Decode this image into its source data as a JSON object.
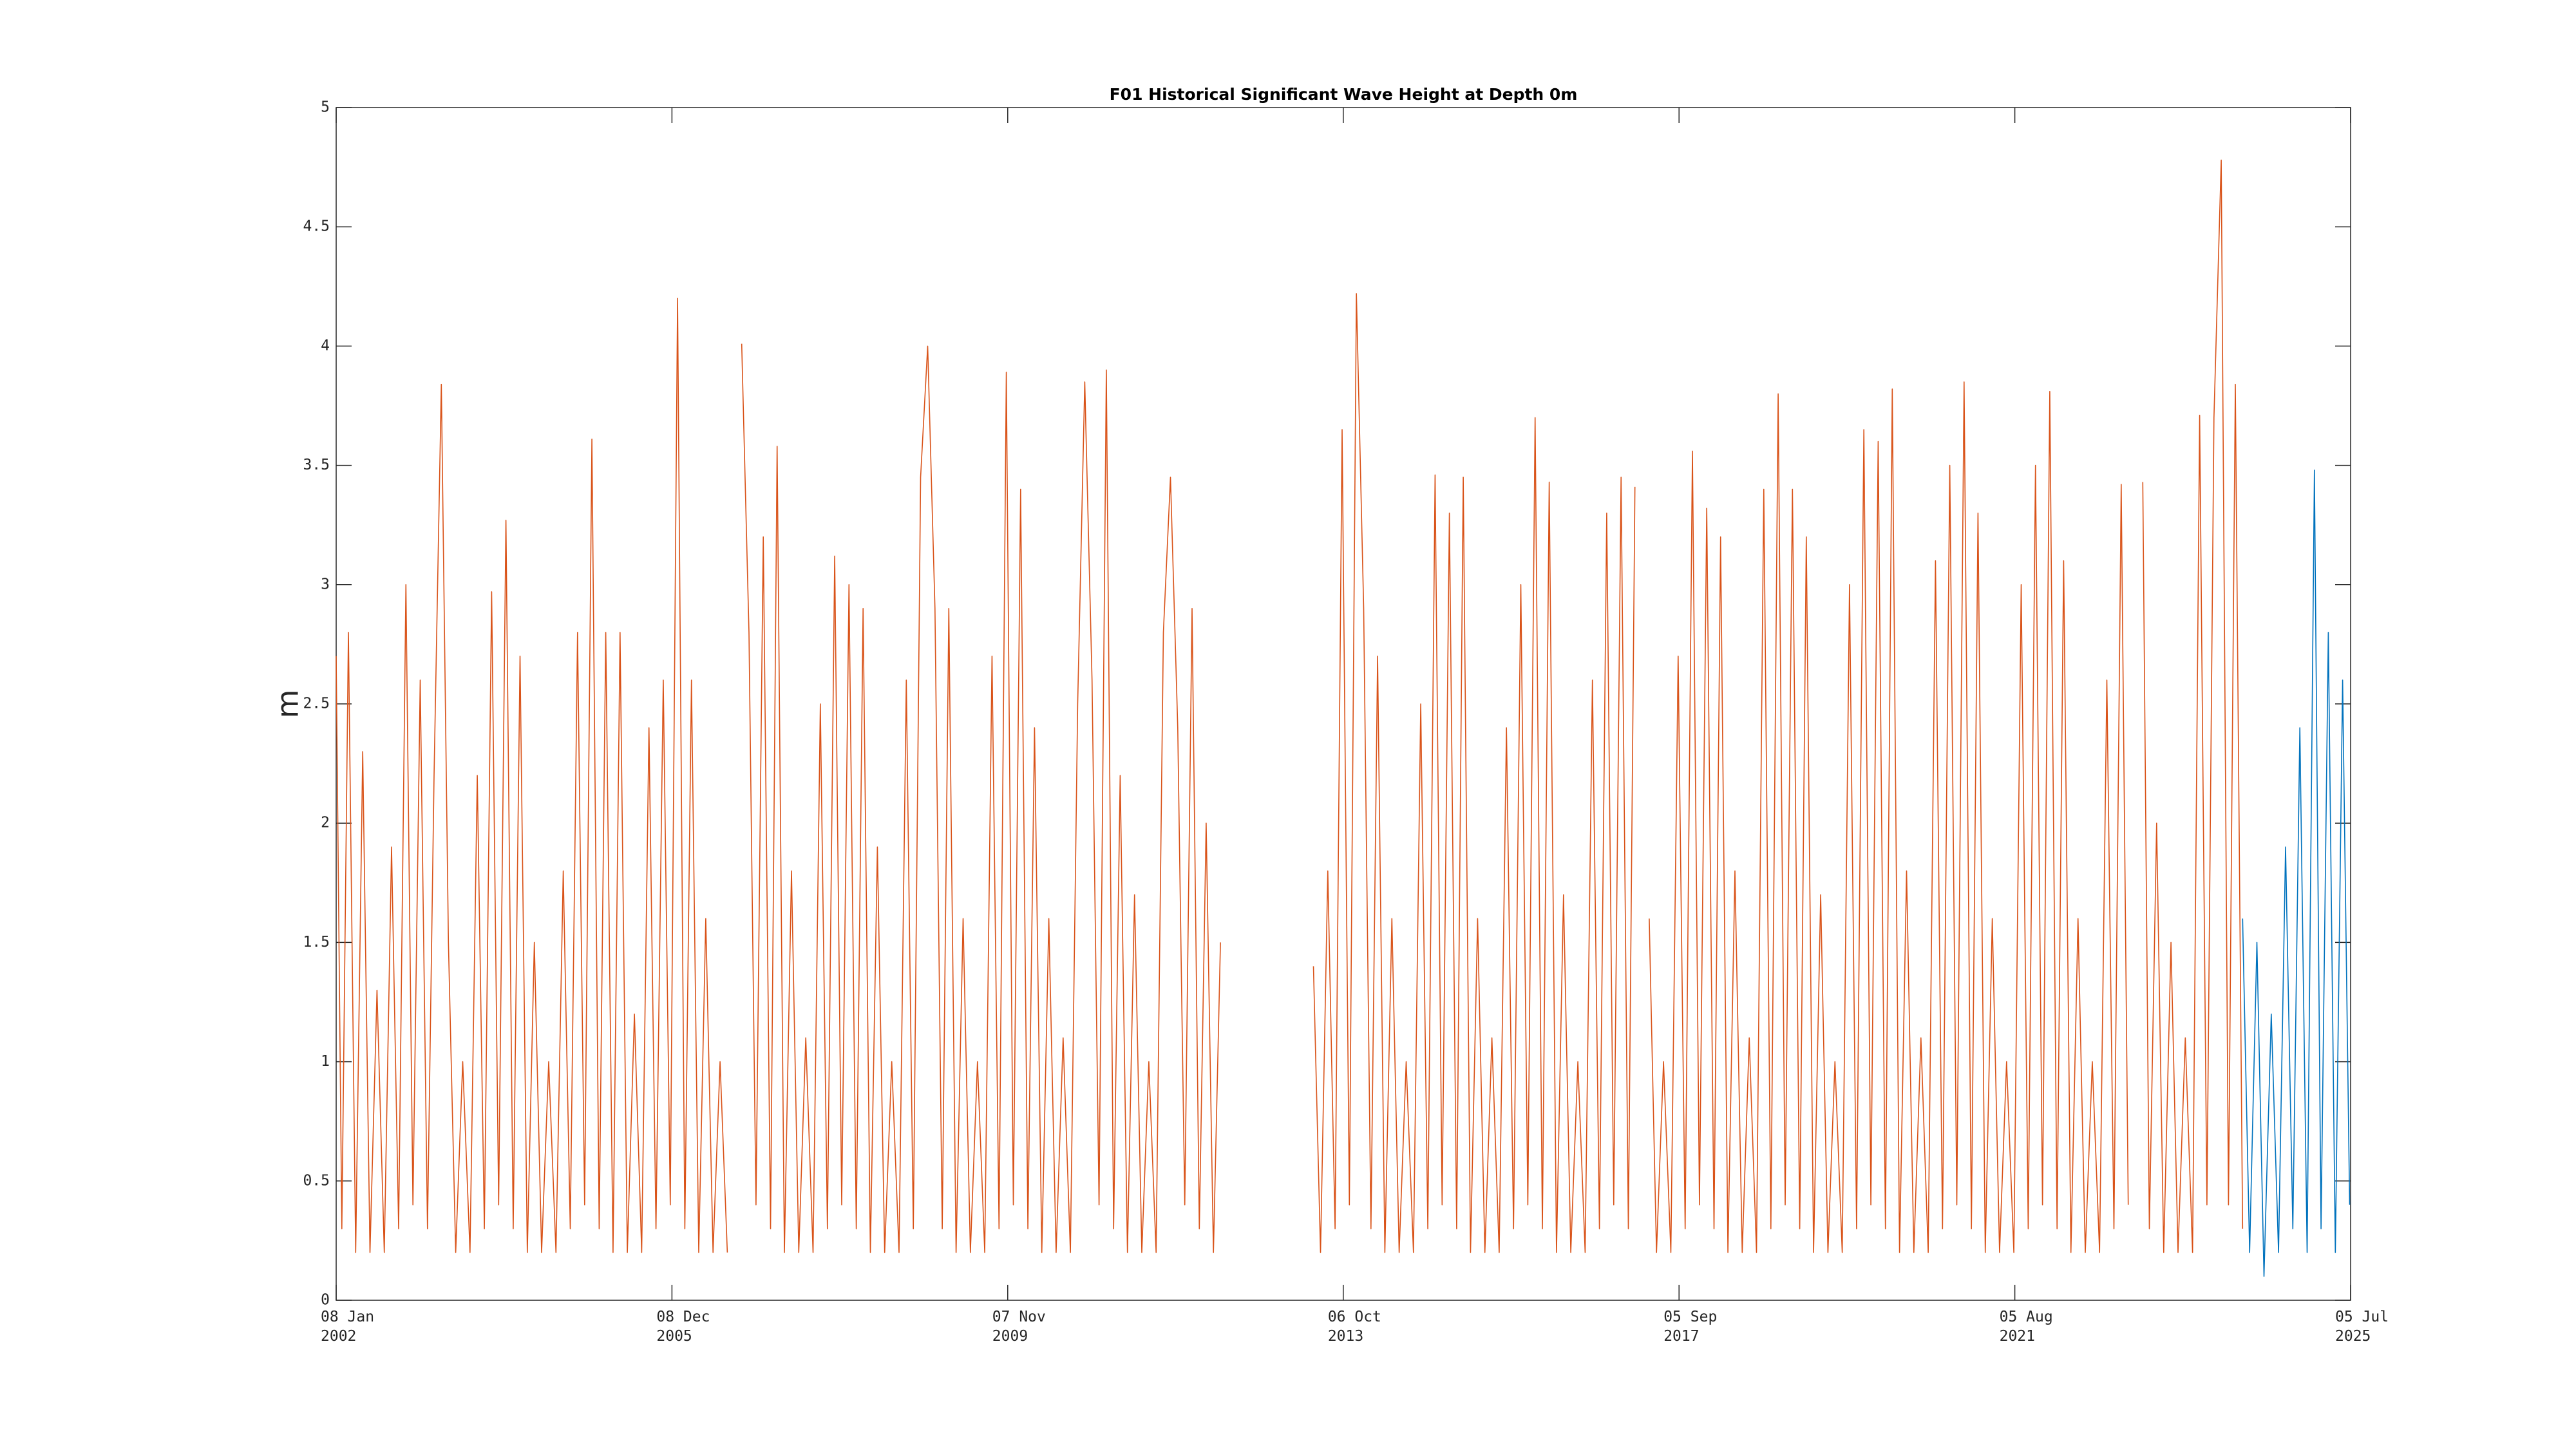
{
  "chart_data": {
    "type": "line",
    "title": "F01 Historical Significant Wave Height at Depth 0m",
    "y_label": "m",
    "xlim": [
      "2002-01-08",
      "2025-07-05"
    ],
    "xticks": [
      {
        "value": "2002-01-08",
        "label": "08 Jan\n2002"
      },
      {
        "value": "2005-12-08",
        "label": "08 Dec\n2005"
      },
      {
        "value": "2009-11-07",
        "label": "07 Nov\n2009"
      },
      {
        "value": "2013-10-06",
        "label": "06 Oct\n2013"
      },
      {
        "value": "2017-09-05",
        "label": "05 Sep\n2017"
      },
      {
        "value": "2021-08-05",
        "label": "05 Aug\n2021"
      },
      {
        "value": "2025-07-05",
        "label": "05 Jul\n2025"
      }
    ],
    "ylim": [
      0,
      5
    ],
    "yticks": [
      0,
      0.5,
      1,
      1.5,
      2,
      2.5,
      3,
      3.5,
      4,
      4.5,
      5
    ],
    "grid": false,
    "series": [
      {
        "color": "#d95319",
        "x": [
          "2002-01-08",
          "2002-02-01",
          "2002-03-01",
          "2002-04-01",
          "2002-05-01",
          "2002-06-01",
          "2002-07-01",
          "2002-08-01",
          "2002-09-01",
          "2002-10-01",
          "2002-11-01",
          "2002-12-01",
          "2003-01-01",
          "2003-02-01",
          "2003-03-01",
          "2003-04-01",
          "2003-05-01",
          "2003-06-01",
          "2003-07-01",
          "2003-08-01",
          "2003-09-01",
          "2003-10-01",
          "2003-11-01",
          "2003-12-01",
          "2004-01-01",
          "2004-02-01",
          "2004-03-01",
          "2004-04-01",
          "2004-05-01",
          "2004-06-01",
          "2004-07-01",
          "2004-08-01",
          "2004-09-01",
          "2004-10-01",
          "2004-11-01",
          "2004-12-01",
          "2005-01-01",
          "2005-02-01",
          "2005-03-01",
          "2005-04-01",
          "2005-05-01",
          "2005-06-01",
          "2005-07-01",
          "2005-08-01",
          "2005-09-01",
          "2005-10-01",
          "2005-11-01",
          "2005-12-01",
          "2006-01-01",
          "2006-02-01",
          "2006-03-01",
          "2006-04-01",
          "2006-05-01",
          "2006-06-01",
          "2006-07-01",
          "2006-08-01",
          "2006-09-01",
          "2006-10-01",
          "2006-11-01",
          "2006-12-01",
          "2007-01-01",
          "2007-02-01",
          "2007-03-01",
          "2007-04-01",
          "2007-05-01",
          "2007-06-01",
          "2007-07-01",
          "2007-08-01",
          "2007-09-01",
          "2007-10-01",
          "2007-11-01",
          "2007-12-01",
          "2008-01-01",
          "2008-02-01",
          "2008-03-01",
          "2008-04-01",
          "2008-05-01",
          "2008-06-01",
          "2008-07-01",
          "2008-08-01",
          "2008-09-01",
          "2008-10-01",
          "2008-11-01",
          "2008-12-01",
          "2009-01-01",
          "2009-02-01",
          "2009-03-01",
          "2009-04-01",
          "2009-05-01",
          "2009-06-01",
          "2009-07-01",
          "2009-08-01",
          "2009-09-01",
          "2009-10-01",
          "2009-11-01",
          "2009-12-01",
          "2010-01-01",
          "2010-02-01",
          "2010-03-01",
          "2010-04-01",
          "2010-05-01",
          "2010-06-01",
          "2010-07-01",
          "2010-08-01",
          "2010-09-01",
          "2010-10-01",
          "2010-11-01",
          "2010-12-01",
          "2011-01-01",
          "2011-02-01",
          "2011-03-01",
          "2011-04-01",
          "2011-05-01",
          "2011-06-01",
          "2011-07-01",
          "2011-08-01",
          "2011-09-01",
          "2011-10-01",
          "2011-11-01",
          "2011-12-01",
          "2012-01-01",
          "2012-02-01",
          "2012-03-01",
          "2012-04-01",
          "2012-05-01",
          "2012-12-01",
          "2013-06-01",
          "2013-07-01",
          "2013-08-01",
          "2013-09-01",
          "2013-10-01",
          "2013-11-01",
          "2013-12-01",
          "2014-01-01",
          "2014-02-01",
          "2014-03-01",
          "2014-04-01",
          "2014-05-01",
          "2014-06-01",
          "2014-07-01",
          "2014-08-01",
          "2014-09-01",
          "2014-10-01",
          "2014-11-01",
          "2014-12-01",
          "2015-01-01",
          "2015-02-01",
          "2015-03-01",
          "2015-04-01",
          "2015-05-01",
          "2015-06-01",
          "2015-07-01",
          "2015-08-01",
          "2015-09-01",
          "2015-10-01",
          "2015-11-01",
          "2015-12-01",
          "2016-01-01",
          "2016-02-01",
          "2016-03-01",
          "2016-04-01",
          "2016-05-01",
          "2016-06-01",
          "2016-07-01",
          "2016-08-01",
          "2016-09-01",
          "2016-10-01",
          "2016-11-01",
          "2016-12-01",
          "2017-01-01",
          "2017-02-01",
          "2017-03-01",
          "2017-04-01",
          "2017-05-01",
          "2017-06-01",
          "2017-07-01",
          "2017-08-01",
          "2017-09-01",
          "2017-10-01",
          "2017-11-01",
          "2017-12-01",
          "2018-01-01",
          "2018-02-01",
          "2018-03-01",
          "2018-04-01",
          "2018-05-01",
          "2018-06-01",
          "2018-07-01",
          "2018-08-01",
          "2018-09-01",
          "2018-10-01",
          "2018-11-01",
          "2018-12-01",
          "2019-01-01",
          "2019-02-01",
          "2019-03-01",
          "2019-04-01",
          "2019-05-01",
          "2019-06-01",
          "2019-07-01",
          "2019-08-01",
          "2019-09-01",
          "2019-10-01",
          "2019-11-01",
          "2019-12-01",
          "2020-01-01",
          "2020-02-01",
          "2020-03-01",
          "2020-04-01",
          "2020-05-01",
          "2020-06-01",
          "2020-07-01",
          "2020-08-01",
          "2020-09-01",
          "2020-10-01",
          "2020-11-01",
          "2020-12-01",
          "2021-01-01",
          "2021-02-01",
          "2021-03-01",
          "2021-04-01",
          "2021-05-01",
          "2021-06-01",
          "2021-07-01",
          "2021-08-01",
          "2021-09-01",
          "2021-10-01",
          "2021-11-01",
          "2021-12-01",
          "2022-01-01",
          "2022-02-01",
          "2022-03-01",
          "2022-04-01",
          "2022-05-01",
          "2022-06-01",
          "2022-07-01",
          "2022-08-01",
          "2022-09-01",
          "2022-10-01",
          "2022-11-01",
          "2022-12-01",
          "2023-01-01",
          "2023-02-01",
          "2023-03-01",
          "2023-04-01",
          "2023-05-01",
          "2023-06-01",
          "2023-07-01",
          "2023-08-01",
          "2023-09-01",
          "2023-10-01",
          "2023-11-01",
          "2023-12-01",
          "2024-01-01",
          "2024-02-01",
          "2024-03-01",
          "2024-04-01"
        ],
        "values": [
          2.7,
          0.3,
          2.8,
          0.2,
          2.3,
          0.2,
          1.3,
          0.2,
          1.9,
          0.3,
          3.0,
          0.4,
          2.6,
          0.3,
          2.2,
          3.84,
          1.5,
          0.2,
          1.0,
          0.2,
          2.2,
          0.3,
          2.97,
          0.4,
          3.27,
          0.3,
          2.7,
          0.2,
          1.5,
          0.2,
          1.0,
          0.2,
          1.8,
          0.3,
          2.8,
          0.4,
          3.61,
          0.3,
          2.8,
          0.2,
          2.8,
          0.2,
          1.2,
          0.2,
          2.4,
          0.3,
          2.6,
          0.4,
          4.2,
          0.3,
          2.6,
          0.2,
          1.6,
          0.2,
          1.0,
          0.2,
          null,
          4.01,
          2.8,
          0.4,
          3.2,
          0.3,
          3.58,
          0.2,
          1.8,
          0.2,
          1.1,
          0.2,
          2.5,
          0.3,
          3.12,
          0.4,
          3.0,
          0.3,
          2.9,
          0.2,
          1.9,
          0.2,
          1.0,
          0.2,
          2.6,
          0.3,
          3.45,
          4.0,
          2.9,
          0.3,
          2.9,
          0.2,
          1.6,
          0.2,
          1.0,
          0.2,
          2.7,
          0.3,
          3.89,
          0.4,
          3.4,
          0.3,
          2.4,
          0.2,
          1.6,
          0.2,
          1.1,
          0.2,
          2.5,
          3.85,
          2.6,
          0.4,
          3.9,
          0.3,
          2.2,
          0.2,
          1.7,
          0.2,
          1.0,
          0.2,
          2.8,
          3.45,
          2.4,
          0.4,
          2.9,
          0.3,
          2.0,
          0.2,
          1.5,
          null,
          1.4,
          0.2,
          1.8,
          0.3,
          3.65,
          0.4,
          4.22,
          2.9,
          0.3,
          2.7,
          0.2,
          1.6,
          0.2,
          1.0,
          0.2,
          2.5,
          0.3,
          3.46,
          0.4,
          3.3,
          0.3,
          3.45,
          0.2,
          1.6,
          0.2,
          1.1,
          0.2,
          2.4,
          0.3,
          3.0,
          0.4,
          3.7,
          0.3,
          3.43,
          0.2,
          1.7,
          0.2,
          1.0,
          0.2,
          2.6,
          0.3,
          3.3,
          0.4,
          3.45,
          0.3,
          3.41,
          null,
          1.6,
          0.2,
          1.0,
          0.2,
          2.7,
          0.3,
          3.56,
          0.4,
          3.32,
          0.3,
          3.2,
          0.2,
          1.8,
          0.2,
          1.1,
          0.2,
          3.4,
          0.3,
          3.8,
          0.4,
          3.4,
          0.3,
          3.2,
          0.2,
          1.7,
          0.2,
          1.0,
          0.2,
          3.0,
          0.3,
          3.65,
          0.4,
          3.6,
          0.3,
          3.82,
          0.2,
          1.8,
          0.2,
          1.1,
          0.2,
          3.1,
          0.3,
          3.5,
          0.4,
          3.85,
          0.3,
          3.3,
          0.2,
          1.6,
          0.2,
          1.0,
          0.2,
          3.0,
          0.3,
          3.5,
          0.4,
          3.81,
          0.3,
          3.1,
          0.2,
          1.6,
          0.2,
          1.0,
          0.2,
          2.6,
          0.3,
          3.42,
          0.4,
          null,
          3.43,
          0.3,
          2.0,
          0.2,
          1.5,
          0.2,
          1.1,
          0.2,
          3.71,
          0.4,
          3.7,
          4.78,
          0.4,
          3.84,
          0.3
        ]
      },
      {
        "color": "#0072bd",
        "x": [
          "2024-04-01",
          "2024-05-01",
          "2024-06-01",
          "2024-07-01",
          "2024-08-01",
          "2024-09-01",
          "2024-10-01",
          "2024-11-01",
          "2024-12-01",
          "2025-01-01",
          "2025-02-01",
          "2025-03-01",
          "2025-04-01",
          "2025-05-01",
          "2025-06-01",
          "2025-07-01"
        ],
        "values": [
          1.6,
          0.2,
          1.5,
          0.1,
          1.2,
          0.2,
          1.9,
          0.3,
          2.4,
          0.2,
          3.48,
          0.3,
          2.8,
          0.2,
          2.6,
          0.4
        ]
      }
    ]
  }
}
